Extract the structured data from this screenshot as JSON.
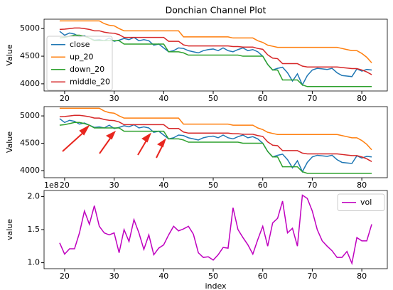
{
  "chart_data": [
    {
      "type": "line",
      "title": "Donchian Channel Plot",
      "ylabel": "Value",
      "x": [
        19,
        20,
        21,
        22,
        23,
        24,
        25,
        26,
        27,
        28,
        29,
        30,
        31,
        32,
        33,
        34,
        35,
        36,
        37,
        38,
        39,
        40,
        41,
        42,
        43,
        44,
        45,
        46,
        47,
        48,
        49,
        50,
        51,
        52,
        53,
        54,
        55,
        56,
        57,
        58,
        59,
        60,
        61,
        62,
        63,
        64,
        65,
        66,
        67,
        68,
        69,
        70,
        71,
        72,
        73,
        74,
        75,
        76,
        77,
        78,
        79,
        80,
        81,
        82
      ],
      "series": [
        {
          "name": "close",
          "color": "#1f77b4",
          "values": [
            4950,
            4880,
            4920,
            4900,
            4850,
            4870,
            4830,
            4790,
            4800,
            4780,
            4830,
            4770,
            4790,
            4820,
            4800,
            4840,
            4780,
            4800,
            4780,
            4700,
            4720,
            4650,
            4580,
            4600,
            4650,
            4640,
            4600,
            4580,
            4560,
            4600,
            4620,
            4630,
            4600,
            4650,
            4600,
            4580,
            4620,
            4650,
            4600,
            4620,
            4580,
            4500,
            4350,
            4250,
            4280,
            4300,
            4200,
            4050,
            4180,
            3980,
            4150,
            4250,
            4280,
            4270,
            4260,
            4280,
            4200,
            4150,
            4140,
            4130,
            4270,
            4230,
            4260,
            4250
          ]
        },
        {
          "name": "up_20",
          "color": "#ff7f0e",
          "values": [
            5140,
            5140,
            5140,
            5140,
            5140,
            5140,
            5140,
            5140,
            5140,
            5090,
            5060,
            5050,
            5000,
            4960,
            4960,
            4960,
            4960,
            4960,
            4960,
            4960,
            4960,
            4960,
            4960,
            4960,
            4960,
            4850,
            4850,
            4850,
            4850,
            4850,
            4850,
            4850,
            4850,
            4850,
            4850,
            4830,
            4830,
            4830,
            4830,
            4830,
            4780,
            4750,
            4700,
            4680,
            4660,
            4660,
            4660,
            4660,
            4660,
            4660,
            4660,
            4660,
            4660,
            4660,
            4660,
            4660,
            4660,
            4640,
            4620,
            4600,
            4600,
            4550,
            4480,
            4380
          ]
        },
        {
          "name": "down_20",
          "color": "#2ca02c",
          "values": [
            4830,
            4840,
            4860,
            4880,
            4880,
            4860,
            4830,
            4780,
            4780,
            4780,
            4780,
            4780,
            4780,
            4720,
            4720,
            4720,
            4720,
            4720,
            4720,
            4720,
            4720,
            4720,
            4580,
            4580,
            4580,
            4560,
            4520,
            4520,
            4520,
            4520,
            4520,
            4520,
            4520,
            4520,
            4520,
            4520,
            4520,
            4500,
            4500,
            4500,
            4500,
            4500,
            4350,
            4250,
            4250,
            4070,
            4070,
            4070,
            4070,
            3980,
            3950,
            3950,
            3950,
            3950,
            3950,
            3950,
            3950,
            3950,
            3950,
            3950,
            3950,
            3950,
            3950,
            3950
          ]
        },
        {
          "name": "middle_20",
          "color": "#d62728",
          "values": [
            4985,
            4990,
            5000,
            5010,
            5010,
            5000,
            4985,
            4960,
            4960,
            4935,
            4920,
            4915,
            4890,
            4840,
            4840,
            4840,
            4840,
            4840,
            4840,
            4840,
            4840,
            4840,
            4770,
            4770,
            4770,
            4705,
            4685,
            4685,
            4685,
            4685,
            4685,
            4685,
            4685,
            4685,
            4685,
            4675,
            4675,
            4665,
            4665,
            4665,
            4640,
            4625,
            4525,
            4465,
            4455,
            4365,
            4365,
            4365,
            4365,
            4320,
            4305,
            4305,
            4305,
            4305,
            4305,
            4305,
            4305,
            4295,
            4285,
            4275,
            4275,
            4250,
            4215,
            4165
          ]
        }
      ],
      "xlim": [
        15.85,
        85.15
      ],
      "xticks": [
        20,
        30,
        40,
        50,
        60,
        70,
        80
      ],
      "ylim": [
        3870,
        5170
      ],
      "yticks": [
        4000,
        4500,
        5000
      ],
      "legend": "upper left"
    },
    {
      "type": "line",
      "ylabel": "Value",
      "x": [
        19,
        20,
        21,
        22,
        23,
        24,
        25,
        26,
        27,
        28,
        29,
        30,
        31,
        32,
        33,
        34,
        35,
        36,
        37,
        38,
        39,
        40,
        41,
        42,
        43,
        44,
        45,
        46,
        47,
        48,
        49,
        50,
        51,
        52,
        53,
        54,
        55,
        56,
        57,
        58,
        59,
        60,
        61,
        62,
        63,
        64,
        65,
        66,
        67,
        68,
        69,
        70,
        71,
        72,
        73,
        74,
        75,
        76,
        77,
        78,
        79,
        80,
        81,
        82
      ],
      "series": [
        {
          "name": "close",
          "color": "#1f77b4",
          "values": [
            4950,
            4880,
            4920,
            4900,
            4850,
            4870,
            4830,
            4790,
            4800,
            4780,
            4830,
            4770,
            4790,
            4820,
            4800,
            4840,
            4780,
            4800,
            4780,
            4700,
            4720,
            4650,
            4580,
            4600,
            4650,
            4640,
            4600,
            4580,
            4560,
            4600,
            4620,
            4630,
            4600,
            4650,
            4600,
            4580,
            4620,
            4650,
            4600,
            4620,
            4580,
            4500,
            4350,
            4250,
            4280,
            4300,
            4200,
            4050,
            4180,
            3980,
            4150,
            4250,
            4280,
            4270,
            4260,
            4280,
            4200,
            4150,
            4140,
            4130,
            4270,
            4230,
            4260,
            4250
          ]
        },
        {
          "name": "up_20",
          "color": "#ff7f0e",
          "values": [
            5140,
            5140,
            5140,
            5140,
            5140,
            5140,
            5140,
            5140,
            5140,
            5090,
            5060,
            5050,
            5000,
            4960,
            4960,
            4960,
            4960,
            4960,
            4960,
            4960,
            4960,
            4960,
            4960,
            4960,
            4960,
            4850,
            4850,
            4850,
            4850,
            4850,
            4850,
            4850,
            4850,
            4850,
            4850,
            4830,
            4830,
            4830,
            4830,
            4830,
            4780,
            4750,
            4700,
            4680,
            4660,
            4660,
            4660,
            4660,
            4660,
            4660,
            4660,
            4660,
            4660,
            4660,
            4660,
            4660,
            4660,
            4640,
            4620,
            4600,
            4600,
            4550,
            4480,
            4380
          ]
        },
        {
          "name": "down_20",
          "color": "#2ca02c",
          "values": [
            4830,
            4840,
            4860,
            4880,
            4880,
            4860,
            4830,
            4780,
            4780,
            4780,
            4780,
            4780,
            4780,
            4720,
            4720,
            4720,
            4720,
            4720,
            4720,
            4720,
            4720,
            4720,
            4580,
            4580,
            4580,
            4560,
            4520,
            4520,
            4520,
            4520,
            4520,
            4520,
            4520,
            4520,
            4520,
            4520,
            4520,
            4500,
            4500,
            4500,
            4500,
            4500,
            4350,
            4250,
            4250,
            4070,
            4070,
            4070,
            4070,
            3980,
            3950,
            3950,
            3950,
            3950,
            3950,
            3950,
            3950,
            3950,
            3950,
            3950,
            3950,
            3950,
            3950,
            3950
          ]
        },
        {
          "name": "middle_20",
          "color": "#d62728",
          "values": [
            4985,
            4990,
            5000,
            5010,
            5010,
            5000,
            4985,
            4960,
            4960,
            4935,
            4920,
            4915,
            4890,
            4840,
            4840,
            4840,
            4840,
            4840,
            4840,
            4840,
            4840,
            4840,
            4770,
            4770,
            4770,
            4705,
            4685,
            4685,
            4685,
            4685,
            4685,
            4685,
            4685,
            4685,
            4685,
            4675,
            4675,
            4665,
            4665,
            4665,
            4640,
            4625,
            4525,
            4465,
            4455,
            4365,
            4365,
            4365,
            4365,
            4320,
            4305,
            4305,
            4305,
            4305,
            4305,
            4305,
            4305,
            4295,
            4285,
            4275,
            4275,
            4250,
            4215,
            4165
          ]
        }
      ],
      "xlim": [
        15.85,
        85.15
      ],
      "xticks": [
        20,
        30,
        40,
        50,
        60,
        70,
        80
      ],
      "ylim": [
        3870,
        5170
      ],
      "yticks": [
        4000,
        4500,
        5000
      ]
    },
    {
      "type": "line",
      "ylabel": "value",
      "xlabel": "index",
      "offset_text": "1e8",
      "x": [
        19,
        20,
        21,
        22,
        23,
        24,
        25,
        26,
        27,
        28,
        29,
        30,
        31,
        32,
        33,
        34,
        35,
        36,
        37,
        38,
        39,
        40,
        41,
        42,
        43,
        44,
        45,
        46,
        47,
        48,
        49,
        50,
        51,
        52,
        53,
        54,
        55,
        56,
        57,
        58,
        59,
        60,
        61,
        62,
        63,
        64,
        65,
        66,
        67,
        68,
        69,
        70,
        71,
        72,
        73,
        74,
        75,
        76,
        77,
        78,
        79,
        80,
        81,
        82
      ],
      "series": [
        {
          "name": "vol",
          "color": "#bf00bf",
          "values": [
            1.3,
            1.13,
            1.21,
            1.21,
            1.45,
            1.78,
            1.58,
            1.86,
            1.55,
            1.45,
            1.42,
            1.45,
            1.15,
            1.5,
            1.32,
            1.65,
            1.45,
            1.2,
            1.42,
            1.12,
            1.22,
            1.27,
            1.42,
            1.55,
            1.48,
            1.51,
            1.55,
            1.43,
            1.15,
            1.08,
            1.09,
            1.04,
            1.12,
            1.23,
            1.22,
            1.83,
            1.5,
            1.38,
            1.27,
            1.13,
            1.35,
            1.55,
            1.25,
            1.6,
            1.67,
            1.93,
            1.45,
            1.52,
            1.25,
            2.02,
            1.97,
            1.78,
            1.5,
            1.33,
            1.25,
            1.18,
            1.08,
            1.08,
            1.17,
            0.99,
            1.38,
            1.33,
            1.33,
            1.58
          ]
        }
      ],
      "xlim": [
        15.85,
        85.15
      ],
      "xticks": [
        20,
        30,
        40,
        50,
        60,
        70,
        80
      ],
      "ylim": [
        0.91,
        2.09
      ],
      "yticks": [
        {
          "value": 1.0,
          "label": "1.0"
        },
        1.5,
        {
          "value": 2.0,
          "label": "2.0"
        }
      ],
      "legend": "upper right"
    }
  ]
}
